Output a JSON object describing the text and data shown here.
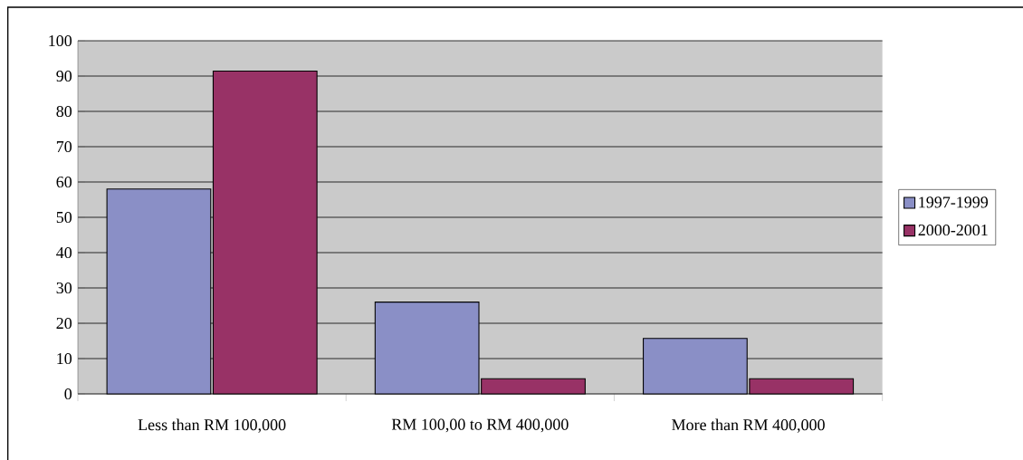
{
  "chart_data": {
    "type": "bar",
    "categories": [
      "Less than RM 100,000",
      "RM 100,00 to RM 400,000",
      "More than RM 400,000"
    ],
    "series": [
      {
        "name": "1997-1999",
        "color": "#8a8fc6",
        "values": [
          58,
          26,
          15.7
        ]
      },
      {
        "name": "2000-2001",
        "color": "#983266",
        "values": [
          91.4,
          4.3,
          4.3
        ]
      }
    ],
    "ylim": [
      0,
      100
    ],
    "yticks": [
      0,
      10,
      20,
      30,
      40,
      50,
      60,
      70,
      80,
      90,
      100
    ],
    "grid": "y",
    "legend": "right"
  }
}
